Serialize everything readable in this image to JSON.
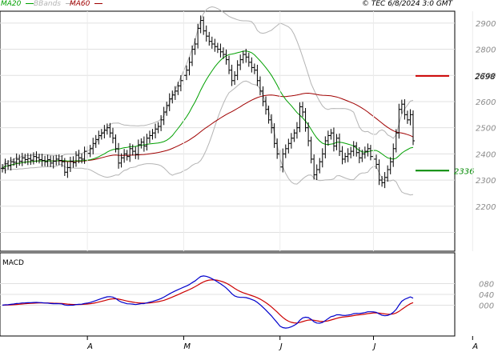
{
  "header": {
    "legend": [
      {
        "label": "MA20",
        "color": "#00a000"
      },
      {
        "label": "BBands",
        "color": "#b4b4b4"
      },
      {
        "label": "MA60",
        "color": "#a00000"
      }
    ],
    "copyright": "© TEC 6/8/2024 3:0 GMT"
  },
  "macd_label": "MACD",
  "chart_data": {
    "type": "ohlc",
    "price_axis": {
      "ticks": [
        2200,
        2300,
        2400,
        2500,
        2600,
        2700,
        2800,
        2900
      ],
      "ylim": [
        2100,
        3000
      ]
    },
    "x_tick_labels": [
      "A",
      "M",
      "J",
      "J",
      "A"
    ],
    "x_tick_bars": [
      30,
      64,
      98,
      131,
      166
    ],
    "levels": [
      {
        "label": "2698",
        "value": 2698,
        "color": "#cc0000"
      },
      {
        "label": "2336",
        "value": 2336,
        "color": "#008800"
      }
    ],
    "close": [
      2345,
      2362,
      2355,
      2370,
      2368,
      2380,
      2372,
      2385,
      2378,
      2382,
      2376,
      2390,
      2386,
      2378,
      2375,
      2370,
      2378,
      2365,
      2372,
      2380,
      2375,
      2370,
      2330,
      2348,
      2372,
      2366,
      2395,
      2385,
      2380,
      2410,
      2402,
      2420,
      2440,
      2455,
      2470,
      2480,
      2490,
      2500,
      2480,
      2460,
      2420,
      2365,
      2385,
      2400,
      2390,
      2420,
      2410,
      2398,
      2435,
      2445,
      2430,
      2460,
      2470,
      2480,
      2495,
      2505,
      2530,
      2560,
      2585,
      2610,
      2625,
      2640,
      2660,
      2680,
      2700,
      2720,
      2750,
      2800,
      2820,
      2880,
      2910,
      2870,
      2850,
      2830,
      2820,
      2810,
      2800,
      2790,
      2780,
      2760,
      2720,
      2680,
      2700,
      2740,
      2760,
      2780,
      2770,
      2750,
      2730,
      2720,
      2680,
      2640,
      2600,
      2570,
      2530,
      2500,
      2440,
      2400,
      2350,
      2400,
      2420,
      2440,
      2460,
      2480,
      2500,
      2580,
      2560,
      2500,
      2450,
      2380,
      2320,
      2340,
      2370,
      2400,
      2450,
      2470,
      2480,
      2430,
      2460,
      2410,
      2380,
      2390,
      2400,
      2410,
      2430,
      2405,
      2385,
      2400,
      2410,
      2420,
      2390,
      2380,
      2360,
      2300,
      2290,
      2310,
      2340,
      2370,
      2420,
      2480,
      2570,
      2590,
      2550,
      2530,
      2550,
      2450
    ],
    "ohlc_noise": [
      18,
      22,
      16,
      20,
      15,
      24,
      19,
      21,
      17,
      23,
      20,
      18,
      22,
      16,
      25,
      19,
      21,
      17,
      23,
      18,
      20,
      22,
      16,
      24,
      19,
      21,
      17,
      23,
      18,
      20,
      22,
      16,
      24,
      19,
      21,
      17,
      23,
      18,
      20,
      22,
      16,
      24,
      19,
      21,
      17,
      23,
      18,
      20,
      22,
      16,
      24,
      19,
      21,
      17,
      23,
      18,
      20,
      22,
      16,
      24,
      19,
      21,
      17,
      23,
      18,
      20,
      22,
      16,
      24,
      19,
      21,
      17,
      23,
      18,
      20,
      22,
      16,
      24,
      19,
      21,
      17,
      23,
      18,
      20,
      22,
      16,
      24,
      19,
      21,
      17,
      23,
      18,
      20,
      22,
      16,
      24,
      19,
      21,
      17,
      23,
      18,
      20,
      22,
      16,
      24,
      19,
      21,
      17,
      23,
      18,
      20,
      22,
      16,
      24,
      19,
      21,
      17,
      23,
      18,
      20,
      22,
      16,
      24,
      19,
      21,
      17,
      23,
      18,
      20,
      22,
      16,
      24,
      19,
      21,
      17,
      23,
      18,
      20,
      22,
      16,
      24,
      19,
      21,
      17,
      23,
      18
    ],
    "macd_axis": {
      "ticks": [
        "080",
        "040",
        "000"
      ],
      "tick_values": [
        80,
        40,
        0
      ],
      "ylim": [
        -100,
        140
      ]
    }
  }
}
